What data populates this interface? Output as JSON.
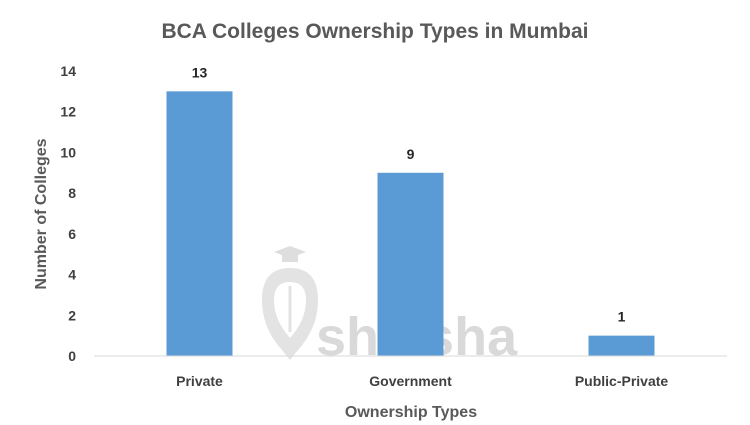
{
  "chart_data": {
    "type": "bar",
    "title": "BCA Colleges Ownership Types in Mumbai",
    "xlabel": "Ownership Types",
    "ylabel": "Number of Colleges",
    "categories": [
      "Private",
      "Government",
      "Public-Private"
    ],
    "values": [
      13,
      9,
      1
    ],
    "data_labels": [
      "13",
      "9",
      "1"
    ],
    "ylim": [
      0,
      14
    ],
    "yticks": [
      "0",
      "2",
      "4",
      "6",
      "8",
      "10",
      "12",
      "14"
    ],
    "grid": false,
    "legend": "none",
    "bar_color": "#5B9BD5"
  },
  "watermark": {
    "text": "shiksha",
    "icon": "graduation-cap-pen-icon",
    "color": "#d9d9d9"
  }
}
